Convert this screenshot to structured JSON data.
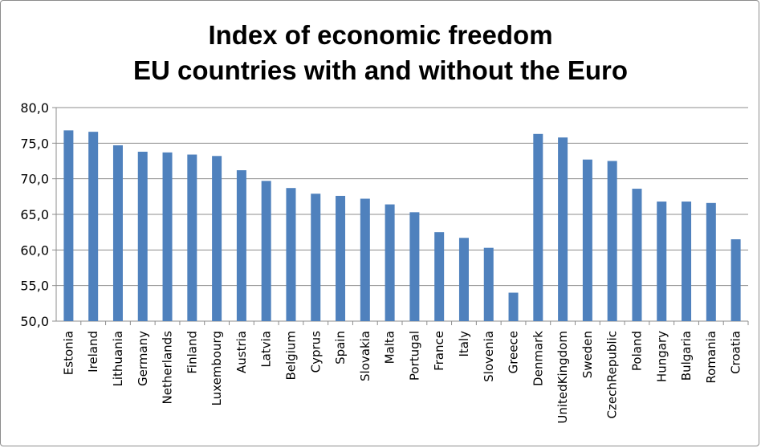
{
  "chart_data": {
    "type": "bar",
    "title": "Index of economic freedom",
    "subtitle": "EU countries with and without the Euro",
    "xlabel": "",
    "ylabel": "",
    "ylim": [
      50,
      80
    ],
    "yticks": [
      "50,0",
      "55,0",
      "60,0",
      "65,0",
      "70,0",
      "75,0",
      "80,0"
    ],
    "grid": true,
    "bar_color": "#4f81bd",
    "categories": [
      "Estonia",
      "Ireland",
      "Lithuania",
      "Germany",
      "Netherlands",
      "Finland",
      "Luxembourg",
      "Austria",
      "Latvia",
      "Belgium",
      "Cyprus",
      "Spain",
      "Slovakia",
      "Malta",
      "Portugal",
      "France",
      "Italy",
      "Slovenia",
      "Greece",
      "Denmark",
      "UnitedKingdom",
      "Sweden",
      "CzechRepublic",
      "Poland",
      "Hungary",
      "Bulgaria",
      "Romania",
      "Croatia"
    ],
    "values": [
      76.8,
      76.6,
      74.7,
      73.8,
      73.7,
      73.4,
      73.2,
      71.2,
      69.7,
      68.7,
      67.9,
      67.6,
      67.2,
      66.4,
      65.3,
      62.5,
      61.7,
      60.3,
      54.0,
      76.3,
      75.8,
      72.7,
      72.5,
      68.6,
      66.8,
      66.8,
      66.6,
      61.5
    ]
  }
}
